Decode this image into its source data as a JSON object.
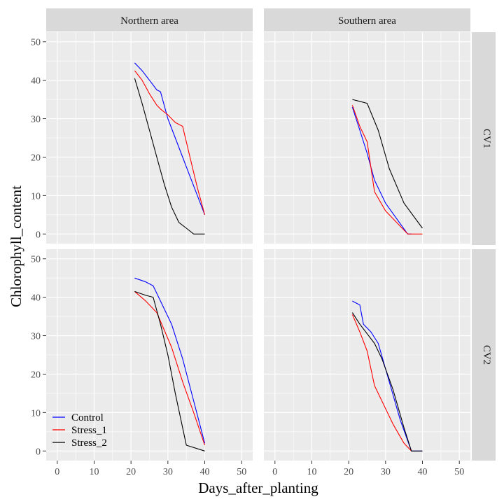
{
  "chart_data": {
    "type": "line",
    "xlabel": "Days_after_planting",
    "ylabel": "Chlorophyll_content",
    "xlim": [
      -3,
      53
    ],
    "ylim": [
      -2.5,
      52.5
    ],
    "x_ticks": [
      0,
      10,
      20,
      30,
      40,
      50
    ],
    "y_ticks": [
      0,
      10,
      20,
      30,
      40,
      50
    ],
    "grid": true,
    "legend_position": "bottom-left",
    "series_colors": {
      "Control": "#0000ff",
      "Stress_1": "#ff0000",
      "Stress_2": "#000000"
    },
    "legend": [
      "Control",
      "Stress_1",
      "Stress_2"
    ],
    "columns": [
      "Northern area",
      "Southern area"
    ],
    "rows": [
      "CV1",
      "CV2"
    ],
    "panels": [
      {
        "column": "Northern area",
        "row": "CV1",
        "series": [
          {
            "name": "Control",
            "x": [
              21,
              23,
              25,
              27,
              28,
              30,
              32,
              34,
              36,
              38,
              40
            ],
            "y": [
              44.5,
              42.5,
              40,
              37.5,
              37,
              30,
              25,
              20,
              15,
              10,
              5
            ]
          },
          {
            "name": "Stress_1",
            "x": [
              21,
              23,
              25,
              27,
              28,
              30,
              32,
              34,
              36,
              38,
              40
            ],
            "y": [
              42.5,
              40,
              36.5,
              33.5,
              32.5,
              31,
              29,
              28,
              20,
              12,
              5
            ]
          },
          {
            "name": "Stress_2",
            "x": [
              21,
              23,
              25,
              27,
              29,
              31,
              33,
              35,
              37,
              40
            ],
            "y": [
              40.5,
              34,
              27,
              20,
              13,
              7,
              3,
              1.5,
              0,
              0
            ]
          }
        ]
      },
      {
        "column": "Southern area",
        "row": "CV1",
        "series": [
          {
            "name": "Control",
            "x": [
              21,
              23,
              25,
              27,
              30,
              33,
              36,
              37
            ],
            "y": [
              33,
              27,
              21,
              14,
              8,
              4,
              0,
              0
            ]
          },
          {
            "name": "Stress_1",
            "x": [
              21,
              23,
              25,
              27,
              30,
              33,
              36,
              40
            ],
            "y": [
              33.5,
              28,
              24,
              11,
              6,
              3,
              0,
              0
            ]
          },
          {
            "name": "Stress_2",
            "x": [
              21,
              23,
              25,
              28,
              31,
              35,
              40
            ],
            "y": [
              35,
              34.5,
              34,
              27,
              17,
              8,
              1.5
            ]
          }
        ]
      },
      {
        "column": "Northern area",
        "row": "CV2",
        "series": [
          {
            "name": "Control",
            "x": [
              21,
              24,
              26,
              28,
              31,
              34,
              37,
              40
            ],
            "y": [
              45,
              44,
              43,
              39,
              33,
              24,
              13,
              2
            ]
          },
          {
            "name": "Stress_1",
            "x": [
              21,
              24,
              27,
              31,
              34,
              37,
              40
            ],
            "y": [
              41.5,
              39,
              36,
              27,
              18,
              10,
              1.5
            ]
          },
          {
            "name": "Stress_2",
            "x": [
              21,
              24,
              26,
              28,
              30,
              32,
              35,
              40
            ],
            "y": [
              41.5,
              40.5,
              40,
              33,
              25,
              15,
              1.5,
              0
            ]
          }
        ]
      },
      {
        "column": "Southern area",
        "row": "CV2",
        "series": [
          {
            "name": "Control",
            "x": [
              21,
              23,
              24,
              26,
              28,
              31,
              34,
              37,
              40
            ],
            "y": [
              39,
              38,
              33,
              31,
              28,
              18,
              8,
              0,
              0
            ]
          },
          {
            "name": "Stress_1",
            "x": [
              21,
              23,
              25,
              27,
              29,
              32,
              35,
              37
            ],
            "y": [
              35.5,
              31,
              26,
              17,
              13,
              7,
              2,
              0
            ]
          },
          {
            "name": "Stress_2",
            "x": [
              21,
              23,
              25,
              27,
              29,
              32,
              35,
              37,
              40
            ],
            "y": [
              36,
              33,
              30.5,
              28,
              24,
              16,
              6,
              0,
              0
            ]
          }
        ]
      }
    ]
  }
}
